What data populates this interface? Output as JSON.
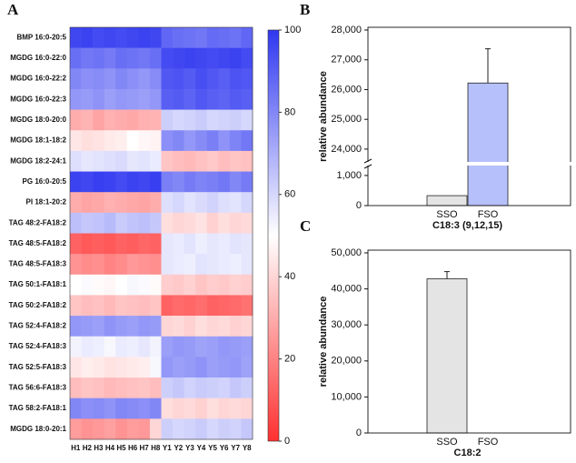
{
  "chart_data": [
    {
      "type": "heatmap",
      "panel": "A",
      "rows": [
        "BMP 16:0-20:5",
        "MGDG 16:0-22:0",
        "MGDG 16:0-22:2",
        "MGDG 16:0-22:3",
        "MGDG 18:0-20:0",
        "MGDG 18:1-18:2",
        "MGDG 18:2-24:1",
        "PG 16:0-20:5",
        "PI 18:1-20:2",
        "TAG 48:2-FA18:2",
        "TAG 48:5-FA18:2",
        "TAG 48:5-FA18:3",
        "TAG 50:1-FA18:1",
        "TAG 50:2-FA18:2",
        "TAG 52:4-FA18:2",
        "TAG 52:4-FA18:3",
        "TAG 52:5-FA18:3",
        "TAG 56:6-FA18:3",
        "TAG 58:2-FA18:1",
        "MGDG 18:0-20:1"
      ],
      "columns": [
        "H1",
        "H2",
        "H3",
        "H4",
        "H5",
        "H6",
        "H7",
        "H8",
        "Y1",
        "Y2",
        "Y3",
        "Y4",
        "Y5",
        "Y6",
        "Y7",
        "Y8"
      ],
      "values": [
        [
          96,
          97,
          95,
          96,
          95,
          96,
          97,
          96,
          88,
          86,
          85,
          84,
          87,
          86,
          85,
          88
        ],
        [
          86,
          84,
          85,
          83,
          86,
          85,
          84,
          86,
          95,
          96,
          97,
          96,
          95,
          96,
          97,
          95
        ],
        [
          80,
          78,
          79,
          77,
          80,
          78,
          76,
          79,
          92,
          93,
          91,
          94,
          92,
          90,
          93,
          92
        ],
        [
          76,
          75,
          77,
          74,
          76,
          75,
          74,
          76,
          90,
          91,
          89,
          92,
          90,
          89,
          91,
          90
        ],
        [
          30,
          32,
          28,
          31,
          30,
          29,
          31,
          32,
          62,
          60,
          61,
          63,
          60,
          61,
          62,
          60
        ],
        [
          44,
          42,
          43,
          45,
          46,
          50,
          48,
          47,
          78,
          80,
          76,
          79,
          82,
          77,
          81,
          84
        ],
        [
          58,
          56,
          57,
          58,
          59,
          56,
          57,
          55,
          36,
          34,
          33,
          35,
          37,
          34,
          36,
          35
        ],
        [
          97,
          96,
          98,
          97,
          95,
          97,
          96,
          98,
          82,
          80,
          83,
          81,
          82,
          84,
          80,
          83
        ],
        [
          30,
          28,
          29,
          31,
          30,
          29,
          28,
          30,
          58,
          60,
          57,
          59,
          61,
          58,
          57,
          60
        ],
        [
          66,
          64,
          65,
          67,
          63,
          65,
          66,
          64,
          42,
          40,
          41,
          43,
          39,
          42,
          40,
          41
        ],
        [
          12,
          10,
          11,
          10,
          12,
          11,
          13,
          12,
          56,
          55,
          57,
          54,
          56,
          55,
          57,
          56
        ],
        [
          24,
          22,
          23,
          20,
          22,
          25,
          24,
          23,
          56,
          55,
          54,
          57,
          56,
          55,
          54,
          56
        ],
        [
          50,
          51,
          49,
          48,
          50,
          52,
          51,
          49,
          38,
          37,
          39,
          36,
          38,
          37,
          39,
          38
        ],
        [
          36,
          34,
          35,
          33,
          36,
          35,
          34,
          36,
          12,
          14,
          13,
          15,
          12,
          13,
          14,
          16
        ],
        [
          76,
          75,
          74,
          77,
          75,
          74,
          76,
          75,
          40,
          41,
          39,
          42,
          40,
          41,
          39,
          40
        ],
        [
          53,
          55,
          54,
          52,
          55,
          54,
          56,
          53,
          74,
          76,
          75,
          73,
          74,
          76,
          75,
          74
        ],
        [
          44,
          46,
          45,
          43,
          44,
          45,
          46,
          52,
          76,
          74,
          75,
          77,
          74,
          75,
          76,
          73
        ],
        [
          34,
          36,
          35,
          33,
          34,
          35,
          36,
          34,
          62,
          64,
          61,
          63,
          62,
          61,
          64,
          62
        ],
        [
          80,
          78,
          79,
          77,
          80,
          79,
          78,
          80,
          42,
          40,
          41,
          39,
          42,
          40,
          41,
          40
        ],
        [
          26,
          24,
          25,
          27,
          24,
          26,
          25,
          40,
          62,
          60,
          61,
          63,
          60,
          62,
          61,
          64
        ]
      ],
      "zlim": [
        0,
        100
      ],
      "zticks": [
        0,
        20,
        40,
        60,
        80,
        100
      ],
      "colors": {
        "low": "#ff3030",
        "mid": "#ffffff",
        "high": "#2f37f0"
      }
    },
    {
      "type": "bar",
      "panel": "B",
      "ylabel": "relative abundance",
      "xlabel": "C18:3 (9,12,15)",
      "categories": [
        "SSO",
        "FSO"
      ],
      "values": [
        330,
        26220
      ],
      "errors": [
        null,
        1150
      ],
      "colors": [
        "#e4e4e4",
        "#b6c0fb"
      ],
      "ylim": [
        0,
        28000
      ],
      "axis_break": [
        1300,
        23600
      ],
      "yticks": [
        0,
        {
          "value": 1000,
          "label": "1,000"
        },
        {
          "value": 24000,
          "label": "24,000"
        },
        {
          "value": 25000,
          "label": "25,000"
        },
        {
          "value": 26000,
          "label": "26,000"
        },
        {
          "value": 27000,
          "label": "27,000"
        },
        {
          "value": 28000,
          "label": "28,000"
        }
      ]
    },
    {
      "type": "bar",
      "panel": "C",
      "ylabel": "relative abundance",
      "xlabel": "C18:2",
      "categories": [
        "SSO",
        "FSO"
      ],
      "values": [
        42800,
        0
      ],
      "errors": [
        2000,
        null
      ],
      "colors": [
        "#e4e4e4",
        "#b6c0fb"
      ],
      "ylim": [
        0,
        50000
      ],
      "yticks": [
        0,
        {
          "value": 10000,
          "label": "10,000"
        },
        {
          "value": 20000,
          "label": "20,000"
        },
        {
          "value": 30000,
          "label": "30,000"
        },
        {
          "value": 40000,
          "label": "40,000"
        },
        {
          "value": 50000,
          "label": "50,000"
        }
      ]
    }
  ]
}
